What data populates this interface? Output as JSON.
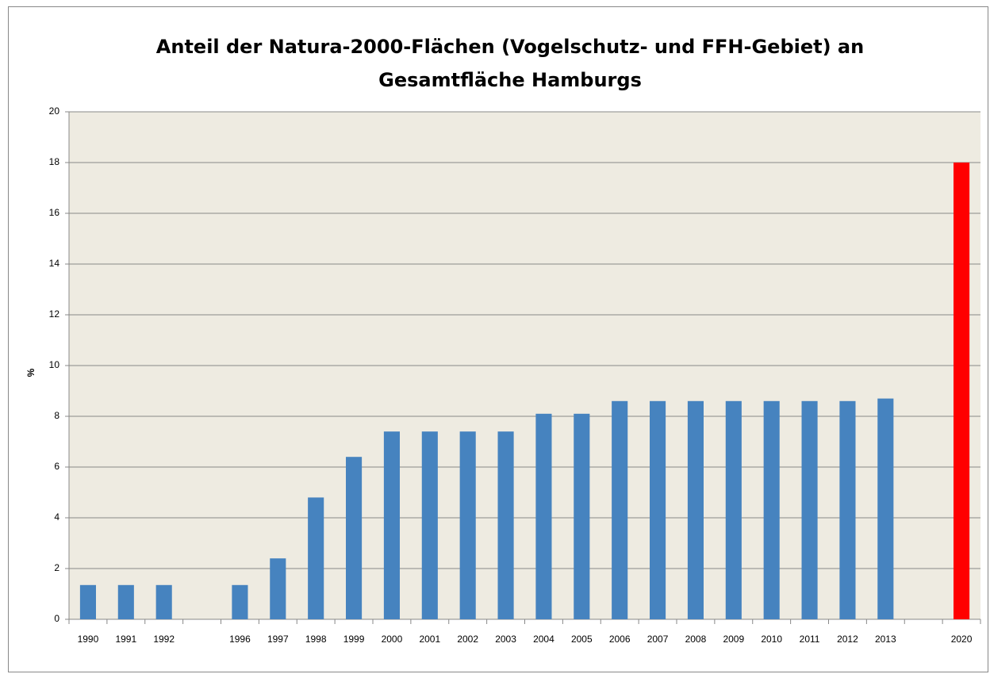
{
  "chart_data": {
    "type": "bar",
    "title": [
      "Anteil der Natura-2000-Flächen (Vogelschutz- und FFH-Gebiet) an",
      "Gesamtfläche Hamburgs"
    ],
    "y_label": "%",
    "categories": [
      "1990",
      "1991",
      "1992",
      null,
      "1996",
      "1997",
      "1998",
      "1999",
      "2000",
      "2001",
      "2002",
      "2003",
      "2004",
      "2005",
      "2006",
      "2007",
      "2008",
      "2009",
      "2010",
      "2011",
      "2012",
      "2013",
      null,
      "2020"
    ],
    "values": [
      1.35,
      1.35,
      1.35,
      null,
      1.35,
      2.4,
      4.8,
      6.4,
      7.4,
      7.4,
      7.4,
      7.4,
      8.1,
      8.1,
      8.6,
      8.6,
      8.6,
      8.6,
      8.6,
      8.6,
      8.6,
      8.7,
      null,
      18
    ],
    "colors": [
      "#4683bf",
      "#4683bf",
      "#4683bf",
      null,
      "#4683bf",
      "#4683bf",
      "#4683bf",
      "#4683bf",
      "#4683bf",
      "#4683bf",
      "#4683bf",
      "#4683bf",
      "#4683bf",
      "#4683bf",
      "#4683bf",
      "#4683bf",
      "#4683bf",
      "#4683bf",
      "#4683bf",
      "#4683bf",
      "#4683bf",
      "#4683bf",
      null,
      "#ff0000"
    ],
    "ylim": [
      0,
      20
    ],
    "yticks": [
      0,
      2,
      4,
      6,
      8,
      10,
      12,
      14,
      16,
      18,
      20
    ],
    "grid": true
  }
}
